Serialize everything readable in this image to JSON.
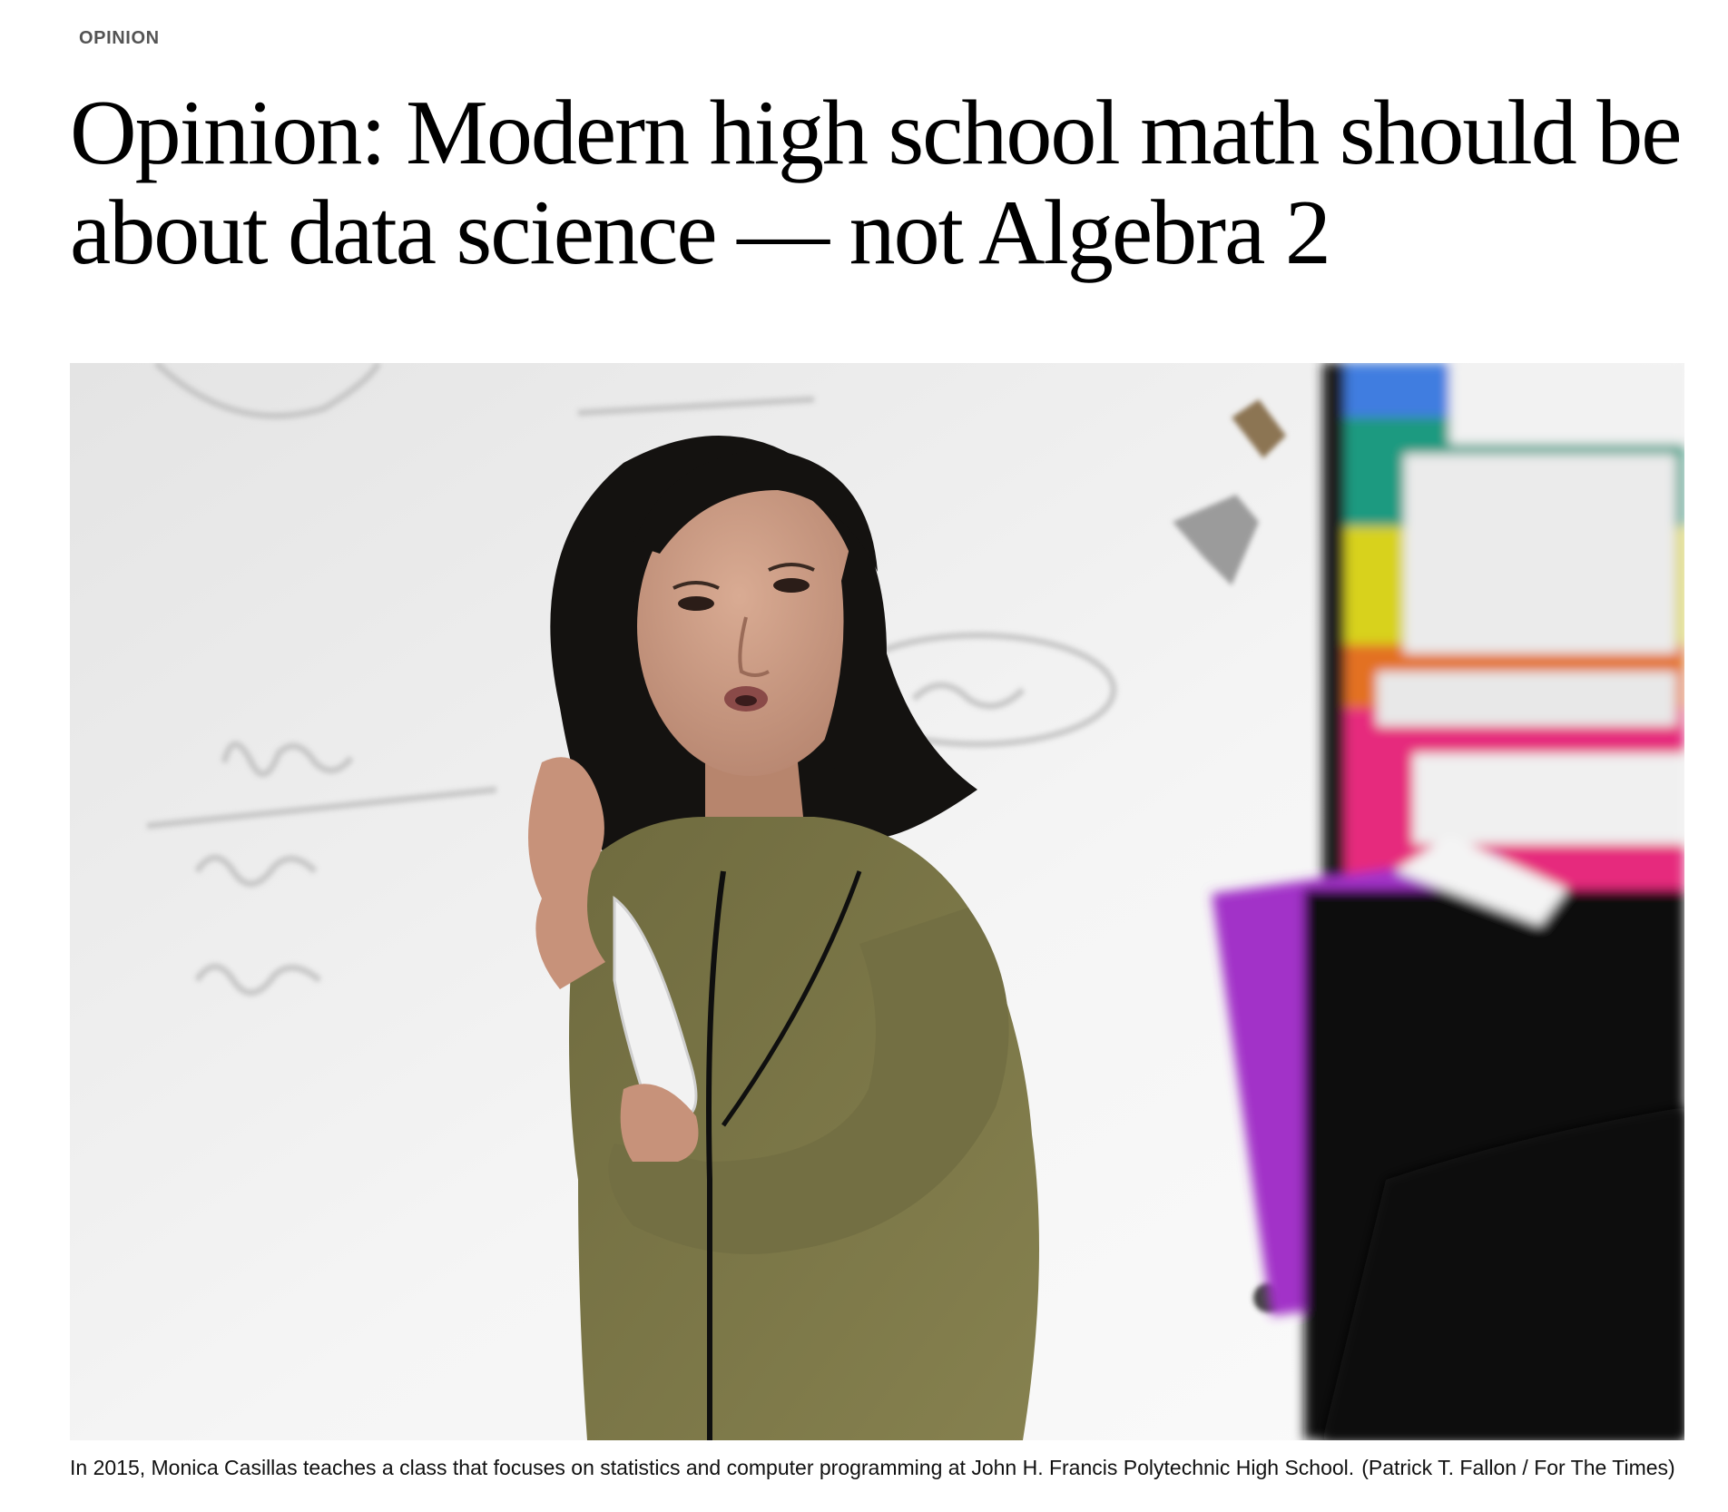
{
  "article": {
    "section": "OPINION",
    "headline": "Opinion: Modern high school math should be about data science — not Algebra 2",
    "photo_caption": "In 2015, Monica Casillas teaches a class that focuses on statistics and computer programming at John H. Francis Polytechnic High School.",
    "photo_credit": "(Patrick T. Fallon / For The Times)"
  },
  "colors": {
    "page_background": "#ffffff",
    "section_label": "#545454",
    "headline": "#000000",
    "caption": "#111111",
    "photo_whiteboard": "#ececec",
    "photo_blouse": "#7a7648",
    "photo_hair": "#141210",
    "photo_skin": "#c99a84"
  }
}
